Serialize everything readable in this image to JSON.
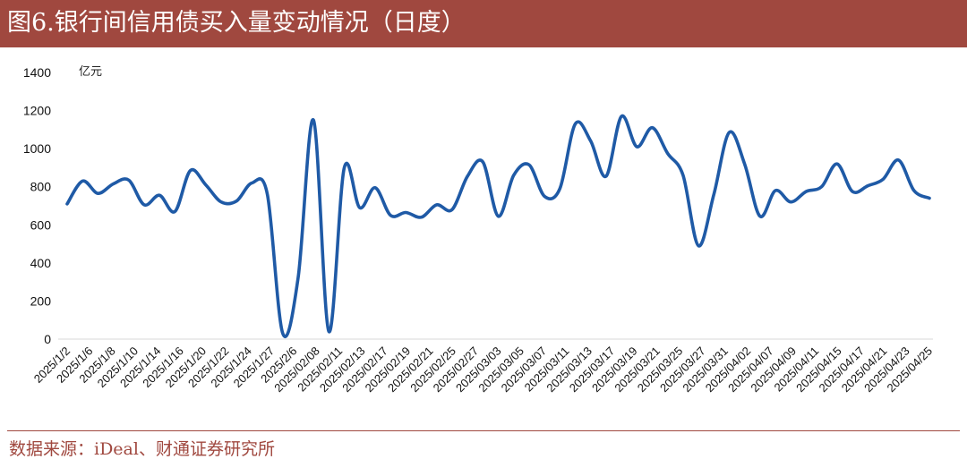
{
  "header": {
    "title": "图6.银行间信用债买入量变动情况（日度）"
  },
  "footer": {
    "source": "数据来源：iDeal、财通证券研究所"
  },
  "colors": {
    "title_bg": "#a0483f",
    "line": "#1f5aa6",
    "source_text": "#a0483f",
    "axis": "#d9d9d9"
  },
  "chart_data": {
    "type": "line",
    "title": "",
    "xlabel": "",
    "ylabel": "亿元",
    "ylim": [
      0,
      1400
    ],
    "yticks": [
      0,
      200,
      400,
      600,
      800,
      1000,
      1200,
      1400
    ],
    "grid": false,
    "x_tick_labels": [
      "2025/1/2",
      "2025/1/6",
      "2025/1/8",
      "2025/1/10",
      "2025/1/14",
      "2025/1/16",
      "2025/1/20",
      "2025/1/22",
      "2025/1/24",
      "2025/1/27",
      "2025/2/6",
      "2025/02/08",
      "2025/02/11",
      "2025/02/13",
      "2025/02/17",
      "2025/02/19",
      "2025/02/21",
      "2025/02/25",
      "2025/02/27",
      "2025/03/03",
      "2025/03/05",
      "2025/03/07",
      "2025/03/11",
      "2025/03/13",
      "2025/03/17",
      "2025/03/19",
      "2025/03/21",
      "2025/03/25",
      "2025/03/27",
      "2025/03/31",
      "2025/04/02",
      "2025/04/07",
      "2025/04/09",
      "2025/04/11",
      "2025/04/15",
      "2025/04/17",
      "2025/04/21",
      "2025/04/23",
      "2025/04/25"
    ],
    "series": [
      {
        "values": [
          710,
          830,
          765,
          815,
          835,
          705,
          755,
          670,
          885,
          810,
          720,
          725,
          820,
          760,
          30,
          320,
          1150,
          40,
          900,
          690,
          795,
          650,
          665,
          640,
          705,
          680,
          855,
          930,
          645,
          860,
          915,
          750,
          790,
          1130,
          1040,
          855,
          1170,
          1010,
          1110,
          975,
          860,
          490,
          760,
          1085,
          920,
          645,
          780,
          720,
          775,
          800,
          920,
          775,
          805,
          840,
          940,
          780,
          740
        ]
      }
    ]
  }
}
